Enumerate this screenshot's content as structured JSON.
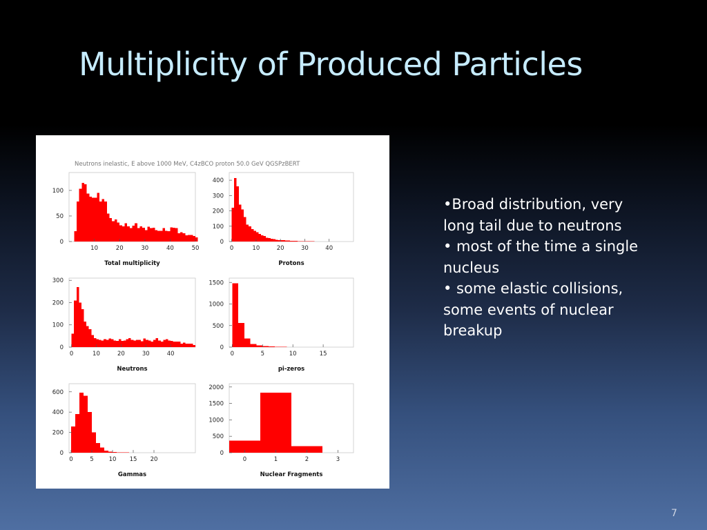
{
  "slide": {
    "title": "Multiplicity of Produced Particles",
    "page_number": "7",
    "bullets": [
      "•Broad distribution, very long tail due to neutrons",
      "• most of the time a single nucleus",
      "• some elastic collisions, some events of nuclear breakup"
    ]
  },
  "figure": {
    "header": "Neutrons inelastic, E above 1000 MeV,  C4zBCO proton 50.0 GeV QGSPzBERT",
    "bar_color": "#ff0000"
  },
  "chart_data": [
    {
      "type": "bar",
      "title": "Total multiplicity",
      "xlim": [
        0,
        50
      ],
      "ylim": [
        0,
        135
      ],
      "bin_start": 2,
      "bin_width": 1,
      "xticks": [
        10,
        20,
        30,
        40,
        50
      ],
      "yticks": [
        0,
        50,
        100
      ],
      "values": [
        20,
        78,
        103,
        115,
        112,
        94,
        88,
        86,
        86,
        95,
        78,
        83,
        78,
        55,
        46,
        40,
        43,
        37,
        32,
        30,
        36,
        30,
        26,
        31,
        36,
        26,
        30,
        27,
        22,
        29,
        26,
        27,
        22,
        21,
        21,
        26,
        21,
        20,
        28,
        27,
        26,
        16,
        18,
        16,
        12,
        13,
        13,
        11,
        8
      ]
    },
    {
      "type": "bar",
      "title": "Protons",
      "xlim": [
        -1,
        50
      ],
      "ylim": [
        0,
        450
      ],
      "bin_start": 0,
      "bin_width": 1,
      "xticks": [
        0,
        10,
        20,
        30,
        40
      ],
      "yticks": [
        0,
        100,
        200,
        300,
        400
      ],
      "values": [
        220,
        415,
        360,
        240,
        210,
        160,
        110,
        100,
        80,
        70,
        60,
        50,
        40,
        35,
        25,
        22,
        18,
        15,
        12,
        10,
        9,
        8,
        7,
        6,
        5,
        4,
        4,
        3,
        3,
        3,
        2,
        2,
        2,
        2,
        1,
        1,
        1,
        1,
        1,
        1,
        1,
        1,
        1,
        1,
        1,
        1,
        1,
        1,
        1,
        1
      ]
    },
    {
      "type": "bar",
      "title": "Neutrons",
      "xlim": [
        -1,
        50
      ],
      "ylim": [
        0,
        310
      ],
      "bin_start": 0,
      "bin_width": 1,
      "xticks": [
        0,
        10,
        20,
        30,
        40
      ],
      "yticks": [
        0,
        100,
        200,
        300
      ],
      "values": [
        60,
        210,
        270,
        200,
        170,
        115,
        95,
        80,
        55,
        40,
        35,
        33,
        30,
        35,
        32,
        38,
        35,
        30,
        28,
        35,
        28,
        30,
        36,
        40,
        33,
        30,
        33,
        33,
        26,
        38,
        32,
        30,
        25,
        32,
        40,
        30,
        25,
        32,
        35,
        30,
        28,
        25,
        25,
        25,
        15,
        20,
        15,
        15,
        15,
        10
      ]
    },
    {
      "type": "bar",
      "title": "pi-zeros",
      "xlim": [
        -0.5,
        20
      ],
      "ylim": [
        0,
        1600
      ],
      "bin_start": 0,
      "bin_width": 1,
      "xticks": [
        0,
        5,
        10,
        15
      ],
      "yticks": [
        0,
        500,
        1000,
        1500
      ],
      "values": [
        1480,
        560,
        200,
        70,
        40,
        25,
        15,
        8,
        5,
        3,
        2,
        2,
        1,
        1,
        1,
        1,
        1,
        1,
        1,
        1
      ]
    },
    {
      "type": "bar",
      "title": "Gammas",
      "xlim": [
        -0.5,
        30
      ],
      "ylim": [
        0,
        680
      ],
      "bin_start": 0,
      "bin_width": 1,
      "xticks": [
        0,
        5,
        10,
        15,
        20
      ],
      "yticks": [
        0,
        200,
        400,
        600
      ],
      "values": [
        260,
        380,
        590,
        560,
        400,
        200,
        95,
        50,
        22,
        10,
        6,
        4,
        3,
        2,
        1,
        1,
        1,
        1,
        1,
        1,
        1
      ]
    },
    {
      "type": "bar",
      "title": "Nuclear Fragments",
      "xlim": [
        -0.5,
        3.5
      ],
      "ylim": [
        0,
        2100
      ],
      "bin_start": -0.5,
      "bin_width": 1,
      "xticks": [
        0,
        1,
        2,
        3
      ],
      "yticks": [
        0,
        500,
        1000,
        1500,
        2000
      ],
      "values": [
        370,
        1830,
        200,
        0
      ]
    }
  ]
}
